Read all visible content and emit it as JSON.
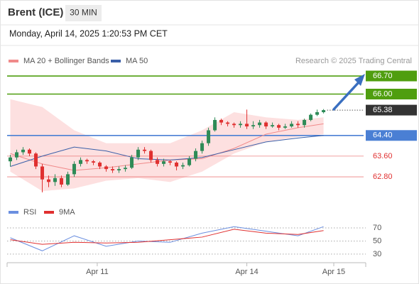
{
  "header": {
    "title": "Brent (ICE)",
    "timeframe": "30 MIN",
    "datetime": "Monday, April 14, 2025 1:20:53 PM CET"
  },
  "chart_data": [
    {
      "type": "candlestick",
      "source": "Research © 2025 Trading Central",
      "xlim": [
        -0.5,
        55.6
      ],
      "ylim": [
        61.95,
        67.03
      ],
      "up_color": "#2e8b57",
      "down_color": "#e03030",
      "open": [
        63.4,
        63.55,
        63.75,
        63.85,
        63.7,
        63.2,
        62.7,
        62.6,
        62.75,
        62.5,
        62.9,
        63.3,
        63.45,
        63.4,
        63.35,
        63.2,
        63.1,
        63.05,
        63.1,
        63.15,
        63.55,
        63.85,
        63.8,
        63.45,
        63.3,
        63.4,
        63.35,
        63.2,
        63.25,
        63.5,
        63.8,
        64.1,
        64.6,
        65.0,
        64.9,
        64.85,
        64.8,
        64.85,
        64.75,
        64.8,
        64.9,
        64.75,
        64.8,
        64.7,
        64.75,
        64.85,
        64.8,
        65.0,
        65.2,
        65.3
      ],
      "high": [
        63.65,
        63.85,
        63.95,
        63.9,
        63.75,
        63.3,
        62.85,
        62.9,
        62.85,
        63.0,
        63.4,
        63.55,
        63.5,
        63.45,
        63.4,
        63.25,
        63.2,
        63.2,
        63.25,
        63.65,
        63.95,
        63.95,
        63.85,
        63.55,
        63.5,
        63.45,
        63.4,
        63.35,
        63.6,
        63.9,
        64.2,
        64.7,
        65.1,
        65.05,
        64.95,
        64.9,
        64.95,
        65.4,
        64.95,
        65.0,
        64.95,
        64.9,
        64.85,
        64.85,
        64.95,
        64.95,
        65.05,
        65.25,
        65.4,
        65.42
      ],
      "low": [
        63.2,
        63.45,
        63.65,
        63.6,
        63.1,
        62.2,
        62.4,
        62.45,
        62.4,
        62.45,
        62.8,
        63.2,
        63.3,
        63.25,
        63.1,
        63.0,
        62.95,
        62.95,
        63.0,
        63.1,
        63.45,
        63.7,
        63.35,
        63.2,
        63.2,
        63.25,
        63.05,
        63.1,
        63.2,
        63.4,
        63.7,
        64.0,
        64.55,
        64.8,
        64.75,
        64.7,
        64.7,
        64.65,
        64.65,
        64.7,
        64.65,
        64.7,
        64.6,
        64.65,
        64.7,
        64.7,
        64.7,
        64.95,
        65.15,
        65.25
      ],
      "close": [
        63.55,
        63.75,
        63.85,
        63.7,
        63.2,
        62.7,
        62.6,
        62.75,
        62.5,
        62.9,
        63.3,
        63.45,
        63.4,
        63.35,
        63.2,
        63.1,
        63.05,
        63.1,
        63.15,
        63.55,
        63.85,
        63.8,
        63.45,
        63.3,
        63.4,
        63.35,
        63.2,
        63.25,
        63.5,
        63.8,
        64.1,
        64.6,
        65.0,
        64.9,
        64.85,
        64.8,
        64.85,
        64.75,
        64.8,
        64.9,
        64.75,
        64.8,
        64.7,
        64.75,
        64.85,
        64.8,
        65.0,
        65.2,
        65.3,
        65.38
      ],
      "bands": {
        "color": "#fde0e0",
        "x": [
          0,
          5,
          10,
          15,
          20,
          25,
          30,
          35,
          40,
          45,
          49
        ],
        "upper": [
          65.8,
          65.5,
          64.6,
          64.1,
          64.1,
          64.1,
          64.6,
          65.3,
          65.1,
          65.0,
          65.1
        ],
        "lower": [
          63.0,
          62.25,
          62.35,
          62.65,
          62.75,
          62.6,
          63.0,
          63.7,
          64.15,
          64.35,
          64.45
        ]
      },
      "series": [
        {
          "name": "MA 20 + Bollinger Bands",
          "color": "#f08a8a",
          "x": [
            0,
            5,
            10,
            15,
            20,
            25,
            30,
            35,
            40,
            45,
            49
          ],
          "values": [
            63.7,
            63.3,
            63.05,
            63.15,
            63.3,
            63.45,
            63.5,
            63.9,
            64.45,
            64.7,
            64.85
          ]
        },
        {
          "name": "MA 50",
          "color": "#3a5fa8",
          "x": [
            0,
            5,
            10,
            15,
            20,
            25,
            30,
            35,
            40,
            45,
            49
          ],
          "values": [
            63.2,
            63.6,
            63.95,
            63.8,
            63.5,
            63.45,
            63.55,
            63.85,
            64.15,
            64.3,
            64.4
          ]
        }
      ],
      "levels": [
        {
          "value": 66.7,
          "label": "66.70",
          "color": "#4f9e0f",
          "kind": "box"
        },
        {
          "value": 66.0,
          "label": "66.00",
          "color": "#4f9e0f",
          "kind": "box"
        },
        {
          "value": 65.38,
          "label": "65.38",
          "color": "#333333",
          "kind": "last"
        },
        {
          "value": 64.4,
          "label": "64.40",
          "color": "#4a7fd4",
          "kind": "box"
        },
        {
          "value": 63.6,
          "label": "63.60",
          "color": "#e03030",
          "kind": "text"
        },
        {
          "value": 62.8,
          "label": "62.80",
          "color": "#e03030",
          "kind": "text"
        }
      ]
    },
    {
      "type": "line",
      "xlim": [
        -0.5,
        55.6
      ],
      "ylim": [
        19,
        82
      ],
      "yticks": [
        30,
        50,
        70
      ],
      "grid": true,
      "xticks": [
        {
          "value": 13.6,
          "label": "Apr 11"
        },
        {
          "value": 37.0,
          "label": "Apr 14"
        },
        {
          "value": 50.6,
          "label": "Apr 15"
        }
      ],
      "series": [
        {
          "name": "RSI",
          "color": "#6b8fe0",
          "x": [
            0,
            5,
            10,
            15,
            20,
            25,
            30,
            35,
            40,
            45,
            49
          ],
          "values": [
            55,
            35,
            58,
            42,
            50,
            48,
            62,
            72,
            65,
            58,
            72
          ]
        },
        {
          "name": "9MA",
          "color": "#e03030",
          "x": [
            0,
            5,
            10,
            15,
            20,
            25,
            30,
            35,
            40,
            45,
            49
          ],
          "values": [
            52,
            45,
            48,
            47,
            48,
            52,
            56,
            68,
            62,
            60,
            66
          ]
        }
      ]
    }
  ]
}
